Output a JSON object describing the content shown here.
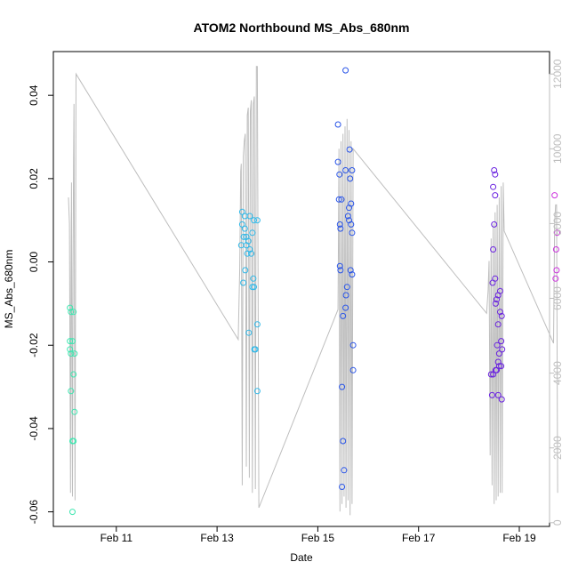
{
  "chart_data": {
    "type": "scatter",
    "title": "ATOM2 Northbound MS_Abs_680nm",
    "xlabel": "Date",
    "ylabel": "MS_Abs_680nm",
    "x_unit": "days since Feb 10 00:00",
    "xlim": [
      -0.25,
      9.6
    ],
    "ylim": [
      -0.0635,
      0.0505
    ],
    "x_ticks": [
      {
        "label": "Feb 11",
        "value": 1
      },
      {
        "label": "Feb 13",
        "value": 3
      },
      {
        "label": "Feb 15",
        "value": 5
      },
      {
        "label": "Feb 17",
        "value": 7
      },
      {
        "label": "Feb 19",
        "value": 9
      }
    ],
    "y_ticks": [
      {
        "label": "-0.06",
        "value": -0.06
      },
      {
        "label": "-0.04",
        "value": -0.04
      },
      {
        "label": "-0.02",
        "value": -0.02
      },
      {
        "label": "0.00",
        "value": 0.0
      },
      {
        "label": "0.02",
        "value": 0.02
      },
      {
        "label": "0.04",
        "value": 0.04
      }
    ],
    "y2_label": "",
    "y2_lim": [
      -100,
      12600
    ],
    "y2_ticks": [
      {
        "label": "0",
        "value": 0
      },
      {
        "label": "2000",
        "value": 2000
      },
      {
        "label": "4000",
        "value": 4000
      },
      {
        "label": "6000",
        "value": 6000
      },
      {
        "label": "8000",
        "value": 8000
      },
      {
        "label": "10000",
        "value": 10000
      },
      {
        "label": "12000",
        "value": 12000
      }
    ],
    "colors": {
      "axis": "#000000",
      "secondary_axis": "#bebebe",
      "depth_line": "#bebebe"
    },
    "series": [
      {
        "name": "MS_Abs_680nm",
        "points": [
          {
            "x": 0.08,
            "y": -0.011,
            "color": "#3ee6b0"
          },
          {
            "x": 0.1,
            "y": -0.012,
            "color": "#3ee6b0"
          },
          {
            "x": 0.08,
            "y": -0.019,
            "color": "#3ee6b0"
          },
          {
            "x": 0.13,
            "y": -0.019,
            "color": "#3ee6b0"
          },
          {
            "x": 0.08,
            "y": -0.021,
            "color": "#3ee6b0"
          },
          {
            "x": 0.1,
            "y": -0.022,
            "color": "#3ee6b0"
          },
          {
            "x": 0.17,
            "y": -0.022,
            "color": "#3ee6b0"
          },
          {
            "x": 0.15,
            "y": -0.012,
            "color": "#3ee6b0"
          },
          {
            "x": 0.15,
            "y": -0.027,
            "color": "#3ee6b0"
          },
          {
            "x": 0.1,
            "y": -0.031,
            "color": "#3ee6b0"
          },
          {
            "x": 0.17,
            "y": -0.036,
            "color": "#3ee6b0"
          },
          {
            "x": 0.13,
            "y": -0.043,
            "color": "#3ee6b0"
          },
          {
            "x": 0.15,
            "y": -0.043,
            "color": "#3ee6b0"
          },
          {
            "x": 0.13,
            "y": -0.06,
            "color": "#3ee6b0"
          },
          {
            "x": 3.5,
            "y": 0.012,
            "color": "#2fb8e8"
          },
          {
            "x": 3.55,
            "y": 0.011,
            "color": "#2fb8e8"
          },
          {
            "x": 3.65,
            "y": 0.011,
            "color": "#2fb8e8"
          },
          {
            "x": 3.73,
            "y": 0.01,
            "color": "#2fb8e8"
          },
          {
            "x": 3.8,
            "y": 0.01,
            "color": "#2fb8e8"
          },
          {
            "x": 3.5,
            "y": 0.009,
            "color": "#2fb8e8"
          },
          {
            "x": 3.55,
            "y": 0.008,
            "color": "#2fb8e8"
          },
          {
            "x": 3.7,
            "y": 0.007,
            "color": "#2fb8e8"
          },
          {
            "x": 3.58,
            "y": 0.006,
            "color": "#2fb8e8"
          },
          {
            "x": 3.53,
            "y": 0.006,
            "color": "#2fb8e8"
          },
          {
            "x": 3.62,
            "y": 0.005,
            "color": "#2fb8e8"
          },
          {
            "x": 3.48,
            "y": 0.004,
            "color": "#2fb8e8"
          },
          {
            "x": 3.58,
            "y": 0.004,
            "color": "#2fb8e8"
          },
          {
            "x": 3.65,
            "y": 0.003,
            "color": "#2fb8e8"
          },
          {
            "x": 3.6,
            "y": 0.002,
            "color": "#2fb8e8"
          },
          {
            "x": 3.68,
            "y": 0.002,
            "color": "#2fb8e8"
          },
          {
            "x": 3.56,
            "y": -0.002,
            "color": "#2fb8e8"
          },
          {
            "x": 3.72,
            "y": -0.004,
            "color": "#2fb8e8"
          },
          {
            "x": 3.52,
            "y": -0.005,
            "color": "#2fb8e8"
          },
          {
            "x": 3.7,
            "y": -0.006,
            "color": "#2fb8e8"
          },
          {
            "x": 3.73,
            "y": -0.006,
            "color": "#2fb8e8"
          },
          {
            "x": 3.8,
            "y": -0.015,
            "color": "#2fb8e8"
          },
          {
            "x": 3.63,
            "y": -0.017,
            "color": "#2fb8e8"
          },
          {
            "x": 3.74,
            "y": -0.021,
            "color": "#2fb8e8"
          },
          {
            "x": 3.76,
            "y": -0.021,
            "color": "#2fb8e8"
          },
          {
            "x": 3.8,
            "y": -0.031,
            "color": "#2fb8e8"
          },
          {
            "x": 5.55,
            "y": 0.046,
            "color": "#2a55e8"
          },
          {
            "x": 5.4,
            "y": 0.033,
            "color": "#2a55e8"
          },
          {
            "x": 5.63,
            "y": 0.027,
            "color": "#2a55e8"
          },
          {
            "x": 5.4,
            "y": 0.024,
            "color": "#2a55e8"
          },
          {
            "x": 5.55,
            "y": 0.022,
            "color": "#2a55e8"
          },
          {
            "x": 5.68,
            "y": 0.022,
            "color": "#2a55e8"
          },
          {
            "x": 5.43,
            "y": 0.021,
            "color": "#2a55e8"
          },
          {
            "x": 5.64,
            "y": 0.02,
            "color": "#2a55e8"
          },
          {
            "x": 5.42,
            "y": 0.015,
            "color": "#2a55e8"
          },
          {
            "x": 5.47,
            "y": 0.015,
            "color": "#2a55e8"
          },
          {
            "x": 5.66,
            "y": 0.014,
            "color": "#2a55e8"
          },
          {
            "x": 5.62,
            "y": 0.013,
            "color": "#2a55e8"
          },
          {
            "x": 5.6,
            "y": 0.011,
            "color": "#2a55e8"
          },
          {
            "x": 5.62,
            "y": 0.01,
            "color": "#2a55e8"
          },
          {
            "x": 5.44,
            "y": 0.009,
            "color": "#2a55e8"
          },
          {
            "x": 5.66,
            "y": 0.009,
            "color": "#2a55e8"
          },
          {
            "x": 5.45,
            "y": 0.008,
            "color": "#2a55e8"
          },
          {
            "x": 5.68,
            "y": 0.007,
            "color": "#2a55e8"
          },
          {
            "x": 5.44,
            "y": -0.001,
            "color": "#2a55e8"
          },
          {
            "x": 5.45,
            "y": -0.002,
            "color": "#2a55e8"
          },
          {
            "x": 5.65,
            "y": -0.002,
            "color": "#2a55e8"
          },
          {
            "x": 5.68,
            "y": -0.003,
            "color": "#2a55e8"
          },
          {
            "x": 5.58,
            "y": -0.006,
            "color": "#2a55e8"
          },
          {
            "x": 5.56,
            "y": -0.008,
            "color": "#2a55e8"
          },
          {
            "x": 5.55,
            "y": -0.011,
            "color": "#2a55e8"
          },
          {
            "x": 5.5,
            "y": -0.013,
            "color": "#2a55e8"
          },
          {
            "x": 5.7,
            "y": -0.02,
            "color": "#2a55e8"
          },
          {
            "x": 5.7,
            "y": -0.026,
            "color": "#2a55e8"
          },
          {
            "x": 5.48,
            "y": -0.03,
            "color": "#2a55e8"
          },
          {
            "x": 5.5,
            "y": -0.043,
            "color": "#2a55e8"
          },
          {
            "x": 5.52,
            "y": -0.05,
            "color": "#2a55e8"
          },
          {
            "x": 5.48,
            "y": -0.054,
            "color": "#2a55e8"
          },
          {
            "x": 8.5,
            "y": 0.022,
            "color": "#6a22e0"
          },
          {
            "x": 8.52,
            "y": 0.021,
            "color": "#6a22e0"
          },
          {
            "x": 8.48,
            "y": 0.018,
            "color": "#6a22e0"
          },
          {
            "x": 8.52,
            "y": 0.016,
            "color": "#6a22e0"
          },
          {
            "x": 8.5,
            "y": 0.009,
            "color": "#6a22e0"
          },
          {
            "x": 8.48,
            "y": 0.003,
            "color": "#6a22e0"
          },
          {
            "x": 8.52,
            "y": -0.004,
            "color": "#6a22e0"
          },
          {
            "x": 8.47,
            "y": -0.005,
            "color": "#6a22e0"
          },
          {
            "x": 8.62,
            "y": -0.007,
            "color": "#6a22e0"
          },
          {
            "x": 8.58,
            "y": -0.008,
            "color": "#6a22e0"
          },
          {
            "x": 8.55,
            "y": -0.009,
            "color": "#6a22e0"
          },
          {
            "x": 8.53,
            "y": -0.01,
            "color": "#6a22e0"
          },
          {
            "x": 8.62,
            "y": -0.012,
            "color": "#6a22e0"
          },
          {
            "x": 8.65,
            "y": -0.013,
            "color": "#6a22e0"
          },
          {
            "x": 8.58,
            "y": -0.015,
            "color": "#6a22e0"
          },
          {
            "x": 8.64,
            "y": -0.019,
            "color": "#6a22e0"
          },
          {
            "x": 8.56,
            "y": -0.02,
            "color": "#6a22e0"
          },
          {
            "x": 8.66,
            "y": -0.021,
            "color": "#6a22e0"
          },
          {
            "x": 8.6,
            "y": -0.022,
            "color": "#6a22e0"
          },
          {
            "x": 8.58,
            "y": -0.024,
            "color": "#6a22e0"
          },
          {
            "x": 8.6,
            "y": -0.025,
            "color": "#6a22e0"
          },
          {
            "x": 8.64,
            "y": -0.025,
            "color": "#6a22e0"
          },
          {
            "x": 8.53,
            "y": -0.026,
            "color": "#6a22e0"
          },
          {
            "x": 8.55,
            "y": -0.026,
            "color": "#6a22e0"
          },
          {
            "x": 8.44,
            "y": -0.027,
            "color": "#6a22e0"
          },
          {
            "x": 8.48,
            "y": -0.027,
            "color": "#6a22e0"
          },
          {
            "x": 8.46,
            "y": -0.032,
            "color": "#6a22e0"
          },
          {
            "x": 8.58,
            "y": -0.032,
            "color": "#6a22e0"
          },
          {
            "x": 8.65,
            "y": -0.033,
            "color": "#6a22e0"
          },
          {
            "x": 9.7,
            "y": 0.016,
            "color": "#cc33dd"
          },
          {
            "x": 9.75,
            "y": 0.007,
            "color": "#cc33dd"
          },
          {
            "x": 9.73,
            "y": 0.003,
            "color": "#cc33dd"
          },
          {
            "x": 9.74,
            "y": -0.002,
            "color": "#cc33dd"
          },
          {
            "x": 9.72,
            "y": -0.004,
            "color": "#cc33dd"
          }
        ]
      },
      {
        "name": "Depth",
        "axis": "y2",
        "line": [
          [
            0.05,
            8700
          ],
          [
            0.07,
            8000
          ],
          [
            0.09,
            800
          ],
          [
            0.1,
            6500
          ],
          [
            0.11,
            9100
          ],
          [
            0.12,
            3500
          ],
          [
            0.13,
            700
          ],
          [
            0.14,
            6800
          ],
          [
            0.15,
            9700
          ],
          [
            0.16,
            11200
          ],
          [
            0.17,
            5000
          ],
          [
            0.18,
            600
          ],
          [
            0.2,
            12000
          ],
          [
            3.42,
            4900
          ],
          [
            3.45,
            6800
          ],
          [
            3.47,
            9400
          ],
          [
            3.48,
            9600
          ],
          [
            3.5,
            1000
          ],
          [
            3.52,
            9800
          ],
          [
            3.54,
            10200
          ],
          [
            3.56,
            10400
          ],
          [
            3.58,
            1500
          ],
          [
            3.6,
            10900
          ],
          [
            3.62,
            11100
          ],
          [
            3.64,
            1200
          ],
          [
            3.66,
            11000
          ],
          [
            3.68,
            11300
          ],
          [
            3.7,
            800
          ],
          [
            3.72,
            11200
          ],
          [
            3.74,
            11400
          ],
          [
            3.76,
            900
          ],
          [
            3.78,
            12200
          ],
          [
            3.8,
            12200
          ],
          [
            3.83,
            400
          ],
          [
            5.4,
            5700
          ],
          [
            5.42,
            10000
          ],
          [
            5.44,
            300
          ],
          [
            5.46,
            10200
          ],
          [
            5.48,
            500
          ],
          [
            5.5,
            10400
          ],
          [
            5.52,
            700
          ],
          [
            5.54,
            10600
          ],
          [
            5.56,
            400
          ],
          [
            5.58,
            10800
          ],
          [
            5.6,
            600
          ],
          [
            5.62,
            10500
          ],
          [
            5.64,
            200
          ],
          [
            5.66,
            10200
          ],
          [
            5.68,
            500
          ],
          [
            5.7,
            10000
          ],
          [
            8.35,
            5600
          ],
          [
            8.38,
            6200
          ],
          [
            8.4,
            7000
          ],
          [
            8.42,
            1800
          ],
          [
            8.44,
            7600
          ],
          [
            8.46,
            1000
          ],
          [
            8.48,
            8000
          ],
          [
            8.5,
            500
          ],
          [
            8.52,
            8300
          ],
          [
            8.54,
            600
          ],
          [
            8.56,
            8500
          ],
          [
            8.58,
            700
          ],
          [
            8.6,
            8700
          ],
          [
            8.62,
            800
          ],
          [
            8.64,
            9000
          ],
          [
            8.66,
            800
          ],
          [
            8.68,
            9100
          ],
          [
            8.7,
            7800
          ],
          [
            9.68,
            4800
          ],
          [
            9.7,
            8000
          ],
          [
            9.72,
            8500
          ],
          [
            9.74,
            8500
          ],
          [
            9.76,
            800
          ]
        ]
      }
    ]
  }
}
